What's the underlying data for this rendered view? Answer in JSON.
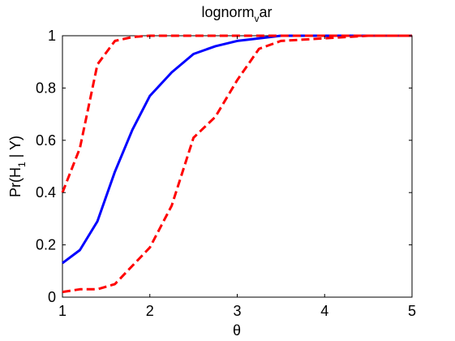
{
  "chart_data": {
    "type": "line",
    "title_main": "lognorm",
    "title_sub": "v",
    "title_tail": "ar",
    "xlabel": "θ",
    "ylabel_main": "Pr(H",
    "ylabel_sub": "1",
    "ylabel_tail": " | Y)",
    "xlim": [
      1,
      5
    ],
    "ylim": [
      0,
      1
    ],
    "x_ticks": [
      "1",
      "2",
      "3",
      "4",
      "5"
    ],
    "y_ticks": [
      "0",
      "0.2",
      "0.4",
      "0.6",
      "0.8",
      "1"
    ],
    "grid": false,
    "legend": "none",
    "series": [
      {
        "style": "solid",
        "color": "#0000ff",
        "x": [
          1.0,
          1.2,
          1.4,
          1.6,
          1.8,
          2.0,
          2.25,
          2.5,
          2.75,
          3.0,
          3.25,
          3.5,
          4.0,
          4.5,
          5.0
        ],
        "y": [
          0.13,
          0.18,
          0.29,
          0.48,
          0.64,
          0.77,
          0.86,
          0.93,
          0.96,
          0.98,
          0.99,
          1.0,
          1.0,
          1.0,
          1.0
        ]
      },
      {
        "style": "dashed",
        "color": "#ff0000",
        "x": [
          1.0,
          1.2,
          1.4,
          1.6,
          1.8,
          2.0,
          2.5,
          3.0,
          3.5,
          4.0,
          5.0
        ],
        "y": [
          0.4,
          0.57,
          0.89,
          0.98,
          0.995,
          1.0,
          1.0,
          1.0,
          1.0,
          1.0,
          1.0
        ]
      },
      {
        "style": "dashed",
        "color": "#ff0000",
        "x": [
          1.0,
          1.2,
          1.4,
          1.6,
          1.8,
          2.0,
          2.25,
          2.5,
          2.75,
          3.0,
          3.25,
          3.5,
          4.0,
          4.5,
          5.0
        ],
        "y": [
          0.02,
          0.03,
          0.03,
          0.05,
          0.12,
          0.19,
          0.35,
          0.61,
          0.69,
          0.83,
          0.95,
          0.98,
          0.99,
          1.0,
          1.0
        ]
      }
    ]
  }
}
